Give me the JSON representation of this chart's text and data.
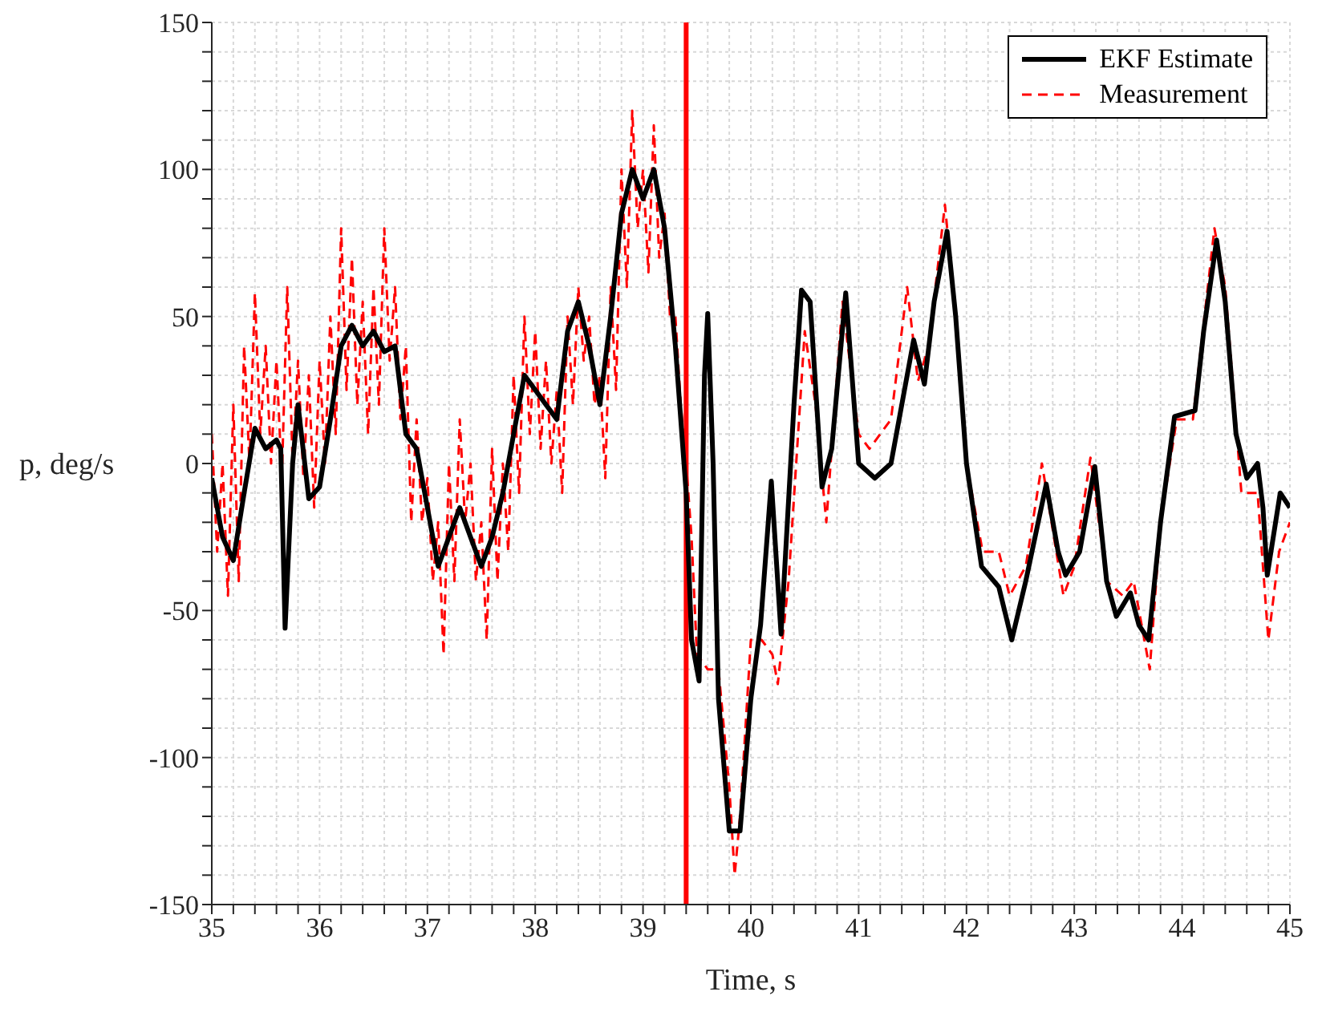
{
  "chart_data": {
    "type": "line",
    "xlabel": "Time, s",
    "ylabel": "p, deg/s",
    "xlim": [
      35,
      45
    ],
    "ylim": [
      -150,
      150
    ],
    "xticks": [
      35,
      {
        "value": 35.2,
        "label": null
      },
      {
        "value": 35.4,
        "label": null
      },
      {
        "value": 35.6,
        "label": null
      },
      {
        "value": 35.8,
        "label": null
      },
      36,
      {
        "value": 36.2,
        "label": null
      },
      {
        "value": 36.4,
        "label": null
      },
      {
        "value": 36.6,
        "label": null
      },
      {
        "value": 36.8,
        "label": null
      },
      37,
      {
        "value": 37.2,
        "label": null
      },
      {
        "value": 37.4,
        "label": null
      },
      {
        "value": 37.6,
        "label": null
      },
      {
        "value": 37.8,
        "label": null
      },
      38,
      {
        "value": 38.2,
        "label": null
      },
      {
        "value": 38.4,
        "label": null
      },
      {
        "value": 38.6,
        "label": null
      },
      {
        "value": 38.8,
        "label": null
      },
      39,
      {
        "value": 39.2,
        "label": null
      },
      {
        "value": 39.4,
        "label": null
      },
      {
        "value": 39.6,
        "label": null
      },
      {
        "value": 39.8,
        "label": null
      },
      40,
      {
        "value": 40.2,
        "label": null
      },
      {
        "value": 40.4,
        "label": null
      },
      {
        "value": 40.6,
        "label": null
      },
      {
        "value": 40.8,
        "label": null
      },
      41,
      {
        "value": 41.2,
        "label": null
      },
      {
        "value": 41.4,
        "label": null
      },
      {
        "value": 41.6,
        "label": null
      },
      {
        "value": 41.8,
        "label": null
      },
      42,
      {
        "value": 42.2,
        "label": null
      },
      {
        "value": 42.4,
        "label": null
      },
      {
        "value": 42.6,
        "label": null
      },
      {
        "value": 42.8,
        "label": null
      },
      43,
      {
        "value": 43.2,
        "label": null
      },
      {
        "value": 43.4,
        "label": null
      },
      {
        "value": 43.6,
        "label": null
      },
      {
        "value": 43.8,
        "label": null
      },
      44,
      {
        "value": 44.2,
        "label": null
      },
      {
        "value": 44.4,
        "label": null
      },
      {
        "value": 44.6,
        "label": null
      },
      {
        "value": 44.8,
        "label": null
      },
      45
    ],
    "yticks": [
      -150,
      {
        "value": -140,
        "label": null
      },
      {
        "value": -130,
        "label": null
      },
      {
        "value": -120,
        "label": null
      },
      {
        "value": -110,
        "label": null
      },
      -100,
      {
        "value": -90,
        "label": null
      },
      {
        "value": -80,
        "label": null
      },
      {
        "value": -70,
        "label": null
      },
      {
        "value": -60,
        "label": null
      },
      -50,
      {
        "value": -40,
        "label": null
      },
      {
        "value": -30,
        "label": null
      },
      {
        "value": -20,
        "label": null
      },
      {
        "value": -10,
        "label": null
      },
      0,
      {
        "value": 10,
        "label": null
      },
      {
        "value": 20,
        "label": null
      },
      {
        "value": 30,
        "label": null
      },
      {
        "value": 40,
        "label": null
      },
      50,
      {
        "value": 60,
        "label": null
      },
      {
        "value": 70,
        "label": null
      },
      {
        "value": 80,
        "label": null
      },
      {
        "value": 90,
        "label": null
      },
      100,
      {
        "value": 110,
        "label": null
      },
      {
        "value": 120,
        "label": null
      },
      {
        "value": 130,
        "label": null
      },
      {
        "value": 140,
        "label": null
      },
      150
    ],
    "grid": true,
    "legend": "top right",
    "ref_lines": [
      {
        "axis": "x",
        "value": 39.4,
        "color": "#ff0000"
      }
    ],
    "series": [
      {
        "name": "EKF Estimate",
        "color": "#000000",
        "line_style": "solid",
        "x": [
          35,
          35.1,
          35.2,
          35.3,
          35.4,
          35.5,
          35.6,
          35.64,
          35.68,
          35.75,
          35.8,
          35.9,
          36,
          36.1,
          36.2,
          36.3,
          36.4,
          36.5,
          36.6,
          36.7,
          36.8,
          36.9,
          37,
          37.1,
          37.2,
          37.3,
          37.4,
          37.5,
          37.6,
          37.7,
          37.8,
          37.9,
          38,
          38.1,
          38.2,
          38.3,
          38.4,
          38.5,
          38.6,
          38.7,
          38.8,
          38.9,
          39,
          39.1,
          39.2,
          39.3,
          39.4,
          39.45,
          39.52,
          39.57,
          39.6,
          39.65,
          39.7,
          39.8,
          39.9,
          40,
          40.09,
          40.19,
          40.28,
          40.4,
          40.47,
          40.55,
          40.66,
          40.75,
          40.88,
          41,
          41.15,
          41.3,
          41.4,
          41.51,
          41.61,
          41.7,
          41.82,
          41.9,
          42,
          42.14,
          42.3,
          42.42,
          42.55,
          42.74,
          42.85,
          42.92,
          43.05,
          43.19,
          43.3,
          43.39,
          43.52,
          43.6,
          43.69,
          43.8,
          43.93,
          44.12,
          44.2,
          44.32,
          44.4,
          44.5,
          44.6,
          44.7,
          44.75,
          44.79,
          44.91,
          45
        ],
        "values": [
          -5,
          -25,
          -33,
          -10,
          12,
          5,
          8,
          5,
          -56,
          0,
          20,
          -12,
          -8,
          15,
          40,
          47,
          40,
          45,
          38,
          40,
          10,
          5,
          -15,
          -35,
          -25,
          -15,
          -25,
          -35,
          -25,
          -10,
          10,
          30,
          25,
          20,
          15,
          45,
          55,
          40,
          20,
          50,
          85,
          100,
          90,
          100,
          80,
          40,
          -10,
          -60,
          -74,
          30,
          51,
          0,
          -80,
          -125,
          -125,
          -80,
          -55,
          -6,
          -58,
          20,
          59,
          55,
          -8,
          5,
          58,
          0,
          -5,
          0,
          20,
          42,
          27,
          55,
          79,
          50,
          0,
          -35,
          -42,
          -60,
          -40,
          -7,
          -30,
          -38,
          -30,
          -1,
          -40,
          -52,
          -44,
          -55,
          -60,
          -20,
          16,
          18,
          45,
          76,
          55,
          10,
          -5,
          0,
          -15,
          -38,
          -10,
          -15
        ]
      },
      {
        "name": "Measurement",
        "color": "#ff0000",
        "line_style": "dashed",
        "x": [
          35,
          35.05,
          35.1,
          35.15,
          35.2,
          35.25,
          35.3,
          35.35,
          35.4,
          35.45,
          35.5,
          35.55,
          35.6,
          35.65,
          35.7,
          35.75,
          35.8,
          35.85,
          35.9,
          35.95,
          36,
          36.05,
          36.1,
          36.15,
          36.2,
          36.25,
          36.3,
          36.35,
          36.4,
          36.45,
          36.5,
          36.55,
          36.6,
          36.65,
          36.7,
          36.75,
          36.8,
          36.85,
          36.9,
          36.95,
          37,
          37.05,
          37.1,
          37.15,
          37.2,
          37.25,
          37.3,
          37.35,
          37.4,
          37.45,
          37.5,
          37.55,
          37.6,
          37.65,
          37.7,
          37.75,
          37.8,
          37.85,
          37.9,
          37.95,
          38,
          38.05,
          38.1,
          38.15,
          38.2,
          38.25,
          38.3,
          38.35,
          38.4,
          38.45,
          38.5,
          38.55,
          38.6,
          38.65,
          38.7,
          38.75,
          38.8,
          38.85,
          38.9,
          38.95,
          39,
          39.05,
          39.1,
          39.15,
          39.2,
          39.25,
          39.3,
          39.35,
          39.4,
          39.45,
          39.5,
          39.6,
          39.7,
          39.8,
          39.85,
          39.9,
          40,
          40.1,
          40.2,
          40.25,
          40.35,
          40.5,
          40.6,
          40.7,
          40.85,
          41,
          41.1,
          41.3,
          41.45,
          41.55,
          41.65,
          41.8,
          41.9,
          42,
          42.15,
          42.3,
          42.4,
          42.55,
          42.7,
          42.9,
          43,
          43.15,
          43.3,
          43.45,
          43.55,
          43.7,
          43.8,
          43.95,
          44.1,
          44.3,
          44.4,
          44.55,
          44.7,
          44.8,
          44.9,
          45
        ],
        "values": [
          10,
          -30,
          0,
          -45,
          20,
          -40,
          40,
          0,
          58,
          10,
          40,
          0,
          35,
          -5,
          60,
          0,
          35,
          -5,
          30,
          -15,
          35,
          0,
          50,
          10,
          80,
          25,
          70,
          20,
          55,
          10,
          60,
          20,
          80,
          35,
          60,
          15,
          40,
          -20,
          15,
          -20,
          -5,
          -40,
          -20,
          -65,
          0,
          -40,
          15,
          -20,
          0,
          -40,
          -20,
          -60,
          5,
          -40,
          0,
          -30,
          30,
          -10,
          50,
          10,
          45,
          5,
          35,
          0,
          25,
          -10,
          50,
          20,
          60,
          35,
          50,
          20,
          30,
          -5,
          60,
          25,
          100,
          60,
          120,
          80,
          100,
          65,
          115,
          70,
          85,
          50,
          50,
          20,
          0,
          -25,
          -65,
          -70,
          -70,
          -110,
          -140,
          -120,
          -60,
          -60,
          -65,
          -75,
          -40,
          45,
          20,
          -20,
          55,
          10,
          5,
          15,
          60,
          28,
          40,
          88,
          50,
          0,
          -30,
          -30,
          -45,
          -35,
          0,
          -45,
          -35,
          2,
          -40,
          -45,
          -40,
          -70,
          -20,
          15,
          15,
          80,
          60,
          -10,
          -10,
          -60,
          -30,
          -20
        ]
      }
    ]
  }
}
